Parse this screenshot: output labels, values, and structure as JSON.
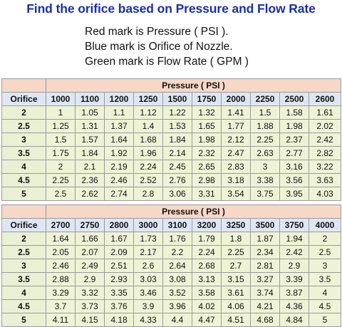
{
  "title": "Find the orifice based on Pressure and Flow Rate",
  "notes": [
    "Red mark is Pressure ( PSI ).",
    "Blue mark is Orifice of Nozzle.",
    "Green mark is Flow Rate ( GPM )"
  ],
  "tables": [
    {
      "pressure_header": "Pressure ( PSI )",
      "orifice_label": "Orifice",
      "pressures": [
        "1000",
        "1100",
        "1200",
        "1250",
        "1500",
        "1750",
        "2000",
        "2250",
        "2500",
        "2600"
      ],
      "rows": [
        {
          "orifice": "2",
          "values": [
            "1",
            "1.05",
            "1.1",
            "1.12",
            "1.22",
            "1.32",
            "1.41",
            "1.5",
            "1.58",
            "1.61"
          ]
        },
        {
          "orifice": "2.5",
          "values": [
            "1.25",
            "1.31",
            "1.37",
            "1.4",
            "1.53",
            "1.65",
            "1.77",
            "1.88",
            "1.98",
            "2.02"
          ]
        },
        {
          "orifice": "3",
          "values": [
            "1.5",
            "1.57",
            "1.64",
            "1.68",
            "1.84",
            "1.98",
            "2.12",
            "2.25",
            "2.37",
            "2.42"
          ]
        },
        {
          "orifice": "3.5",
          "values": [
            "1.75",
            "1.84",
            "1.92",
            "1.96",
            "2.14",
            "2.32",
            "2.47",
            "2.63",
            "2.77",
            "2.82"
          ]
        },
        {
          "orifice": "4",
          "values": [
            "2",
            "2.1",
            "2.19",
            "2.24",
            "2.45",
            "2.65",
            "2.83",
            "3",
            "3.16",
            "3.22"
          ]
        },
        {
          "orifice": "4.5",
          "values": [
            "2.25",
            "2.36",
            "2.46",
            "2.52",
            "2.76",
            "2.98",
            "3.18",
            "3.38",
            "3.56",
            "3.63"
          ]
        },
        {
          "orifice": "5",
          "values": [
            "2.5",
            "2.62",
            "2.74",
            "2.8",
            "3.06",
            "3.31",
            "3.54",
            "3.75",
            "3.95",
            "4.03"
          ]
        }
      ]
    },
    {
      "pressure_header": "Pressure ( PSI )",
      "orifice_label": "Orifice",
      "pressures": [
        "2700",
        "2750",
        "2800",
        "3000",
        "3100",
        "3200",
        "3250",
        "3500",
        "3750",
        "4000"
      ],
      "rows": [
        {
          "orifice": "2",
          "values": [
            "1.64",
            "1.66",
            "1.67",
            "1.73",
            "1.76",
            "1.79",
            "1.8",
            "1.87",
            "1.94",
            "2"
          ]
        },
        {
          "orifice": "2.5",
          "values": [
            "2.05",
            "2.07",
            "2.09",
            "2.17",
            "2.2",
            "2.24",
            "2.25",
            "2.34",
            "2.42",
            "2.5"
          ]
        },
        {
          "orifice": "3",
          "values": [
            "2.46",
            "2.49",
            "2.51",
            "2.6",
            "2.64",
            "2.68",
            "2.7",
            "2.81",
            "2.9",
            "3"
          ]
        },
        {
          "orifice": "3.5",
          "values": [
            "2.88",
            "2.9",
            "2.93",
            "3.03",
            "3.08",
            "3.13",
            "3.15",
            "3.27",
            "3.39",
            "3.5"
          ]
        },
        {
          "orifice": "4",
          "values": [
            "3.29",
            "3.32",
            "3.35",
            "3.46",
            "3.52",
            "3.58",
            "3.61",
            "3.74",
            "3.87",
            "4"
          ]
        },
        {
          "orifice": "4.5",
          "values": [
            "3.7",
            "3.73",
            "3.76",
            "3.9",
            "3.96",
            "4.02",
            "4.06",
            "4.21",
            "4.36",
            "4.5"
          ]
        },
        {
          "orifice": "5",
          "values": [
            "4.11",
            "4.15",
            "4.18",
            "4.33",
            "4.4",
            "4.47",
            "4.51",
            "4.68",
            "4.84",
            "5"
          ]
        }
      ]
    }
  ]
}
